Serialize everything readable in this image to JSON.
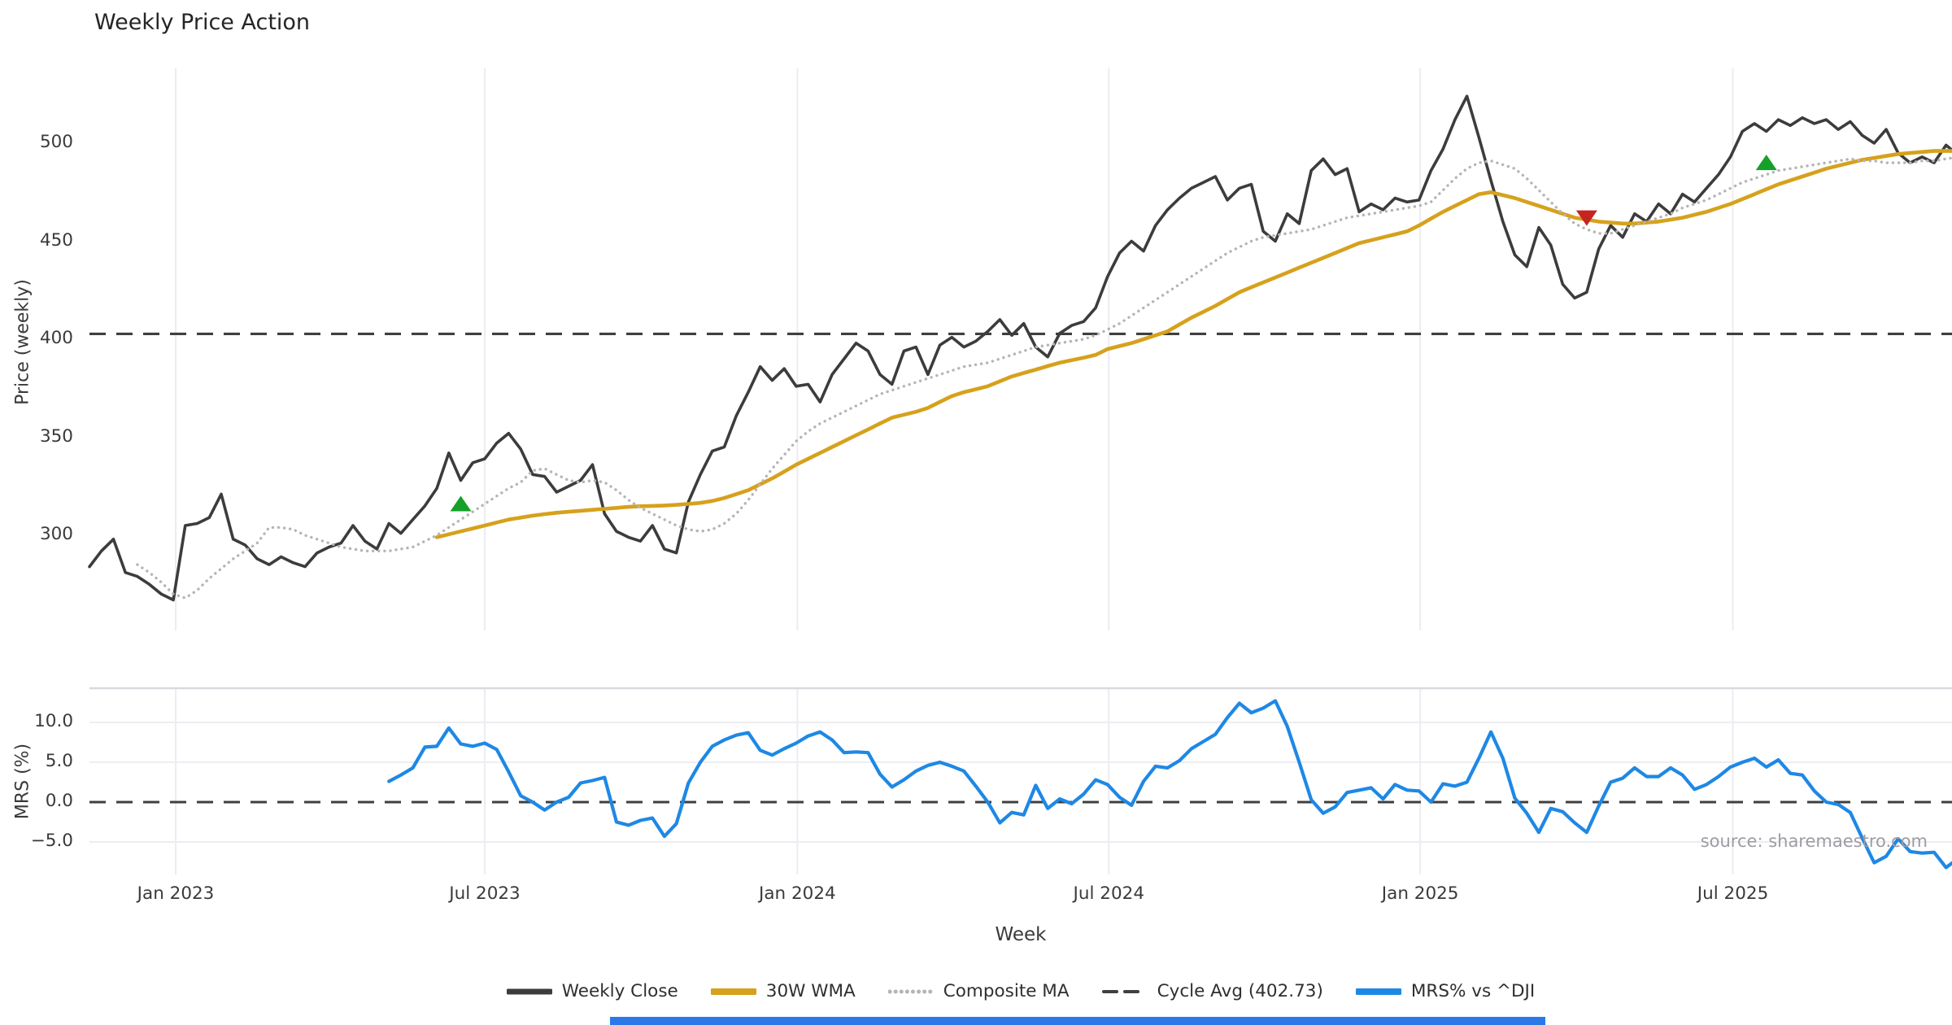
{
  "page": {
    "title": "Weekly Price Action"
  },
  "chart": {
    "title": "Weekly Price Action",
    "source_note": "source: sharemaestro.com",
    "x_axis": {
      "title": "Week",
      "ticks": [
        {
          "label": "Jan 2023",
          "week": 7.2
        },
        {
          "label": "Jul 2023",
          "week": 33.0
        },
        {
          "label": "Jan 2024",
          "week": 59.1
        },
        {
          "label": "Jul 2024",
          "week": 85.1
        },
        {
          "label": "Jan 2025",
          "week": 111.1
        },
        {
          "label": "Jul 2025",
          "week": 137.2
        }
      ]
    },
    "price_axis": {
      "title": "Price (weekly)",
      "ticks": [
        {
          "label": "500",
          "value": 500
        },
        {
          "label": "450",
          "value": 450
        },
        {
          "label": "400",
          "value": 400
        },
        {
          "label": "350",
          "value": 350
        },
        {
          "label": "300",
          "value": 300
        }
      ]
    },
    "mrs_axis": {
      "title": "MRS (%)",
      "ticks": [
        {
          "label": "10.0",
          "value": 10
        },
        {
          "label": "5.0",
          "value": 5
        },
        {
          "label": "0.0",
          "value": 0
        },
        {
          "label": "−5.0",
          "value": -5
        }
      ]
    },
    "legend": [
      {
        "label": "Weekly Close",
        "color": "#3c3c3c",
        "dash": "solid",
        "width": 7
      },
      {
        "label": "30W WMA",
        "color": "#d6a11c",
        "dash": "solid",
        "width": 8
      },
      {
        "label": "Composite MA",
        "color": "#b5b5b5",
        "dash": "dotted",
        "width": 5
      },
      {
        "label": "Cycle Avg (402.73)",
        "color": "#3f3f3f",
        "dash": "dashed",
        "width": 4
      },
      {
        "label": "MRS% vs ^DJI",
        "color": "#1e88e5",
        "dash": "solid",
        "width": 8
      }
    ],
    "colors": {
      "weekly_close": "#3c3c3c",
      "wma_30w": "#d6a11c",
      "composite_ma": "#b5b5b5",
      "cycle_avg": "#3f3f3f",
      "mrs": "#1e88e5",
      "buy_marker": "#16a02a",
      "sell_marker": "#c62420",
      "grid": "#ececf2",
      "panel_spine": "#d8d8de",
      "bottom_bar": "#2b79e8"
    }
  },
  "chart_data": [
    {
      "type": "line",
      "panel": "price",
      "title": "Weekly Price Action",
      "xlabel": "Week",
      "ylabel": "Price (weekly)",
      "ylim": [
        251,
        538
      ],
      "yticks": [
        300,
        350,
        400,
        450,
        500
      ],
      "grid": "vertical-only",
      "cycle_avg": 402.73,
      "x_unit": "week_index_from_2022-11",
      "series": [
        {
          "name": "Weekly Close",
          "color": "#3c3c3c",
          "dash": "solid",
          "start_week": 0,
          "values": [
            284,
            292,
            298,
            281,
            279,
            275,
            270,
            267,
            305,
            306,
            309,
            321,
            298,
            295,
            288,
            285,
            289,
            286,
            284,
            291,
            294,
            296,
            305,
            297,
            293,
            306,
            301,
            308,
            315,
            324,
            342,
            328,
            337,
            339,
            347,
            352,
            344,
            331,
            330,
            322,
            325,
            328,
            336,
            311,
            302,
            299,
            297,
            305,
            293,
            291,
            317,
            331,
            343,
            345,
            361,
            373,
            386,
            379,
            385,
            376,
            377,
            368,
            382,
            390,
            398,
            394,
            382,
            377,
            394,
            396,
            382,
            397,
            401,
            396,
            399,
            404,
            410,
            402,
            408,
            396,
            391,
            403,
            407,
            409,
            416,
            432,
            444,
            450,
            445,
            458,
            466,
            472,
            477,
            480,
            483,
            471,
            477,
            479,
            455,
            450,
            464,
            459,
            486,
            492,
            484,
            487,
            465,
            469,
            466,
            472,
            470,
            471,
            486,
            497,
            512,
            524,
            503,
            481,
            460,
            443,
            437,
            457,
            448,
            428,
            421,
            424,
            446,
            458,
            452,
            464,
            460,
            469,
            464,
            474,
            470,
            477,
            484,
            493,
            506,
            510,
            506,
            512,
            509,
            513,
            510,
            512,
            507,
            511,
            504,
            500,
            507,
            495,
            490,
            493,
            490,
            499,
            494
          ]
        },
        {
          "name": "30W WMA",
          "color": "#d6a11c",
          "dash": "solid",
          "start_week": 29,
          "values": [
            299,
            300.5,
            302,
            303.5,
            305,
            306.5,
            308,
            309,
            310,
            310.8,
            311.5,
            312,
            312.5,
            313,
            313.5,
            314,
            314.5,
            314.8,
            315,
            315.2,
            315.5,
            316,
            316.5,
            317.5,
            319,
            321,
            323,
            326,
            329,
            332.5,
            336,
            339,
            342,
            345,
            348,
            351,
            354,
            357,
            360,
            361.5,
            363,
            365,
            368,
            371,
            373,
            374.5,
            376,
            378.5,
            381,
            382.8,
            384.5,
            386.3,
            388,
            389.3,
            390.6,
            392,
            395,
            396.5,
            398,
            400,
            402,
            404,
            407.5,
            411,
            414,
            417,
            420.5,
            424,
            426.5,
            429,
            431.5,
            434,
            436.5,
            439,
            441.5,
            444,
            446.5,
            449,
            450.5,
            452,
            453.5,
            455,
            458,
            461.5,
            465,
            468,
            471,
            474,
            475,
            473.5,
            472,
            470,
            468,
            466,
            464,
            462,
            461,
            460,
            459.5,
            459,
            459,
            459.5,
            460,
            461,
            462,
            463.5,
            465,
            467,
            469,
            471.5,
            474,
            476.5,
            479,
            481,
            483,
            485,
            487,
            488.5,
            490,
            491.5,
            492.5,
            493.5,
            494.5,
            495,
            495.5,
            496,
            496,
            496
          ]
        },
        {
          "name": "Composite MA",
          "color": "#b5b5b5",
          "dash": "dotted",
          "start_week": 4,
          "values": [
            285,
            281,
            276,
            270,
            268,
            272,
            278,
            283,
            288,
            292,
            296,
            304,
            304,
            303,
            300,
            298,
            296,
            294,
            293,
            292,
            292,
            292,
            293,
            294,
            297,
            300,
            304,
            308,
            312,
            316,
            320,
            324,
            327,
            333,
            334,
            331,
            328,
            327,
            328,
            327,
            323,
            318,
            314,
            311,
            308,
            305,
            303,
            302,
            303,
            306,
            311,
            318,
            326,
            334,
            341,
            348,
            353,
            357,
            360,
            363,
            366,
            369,
            372,
            374,
            376,
            378,
            380,
            382,
            384,
            386,
            387,
            388,
            390,
            392,
            394,
            396,
            397,
            398,
            399,
            400,
            402,
            405,
            408,
            412,
            416,
            420,
            424,
            428,
            432,
            436,
            440,
            444,
            447,
            450,
            452,
            453,
            454,
            455,
            456,
            458,
            460,
            462,
            463,
            464,
            465,
            466,
            467,
            468,
            470,
            476,
            482,
            487,
            490,
            491,
            489,
            487,
            482,
            476,
            470,
            464,
            459,
            456,
            454,
            454,
            456,
            458,
            460,
            462,
            464,
            467,
            469,
            471,
            474,
            477,
            480,
            482,
            484,
            486,
            487,
            488,
            489,
            490,
            491,
            492,
            491,
            491,
            490,
            490,
            490,
            491,
            491,
            492,
            493
          ]
        }
      ],
      "markers": {
        "buy": [
          {
            "week": 31,
            "value": 316
          },
          {
            "week": 140,
            "value": 490
          }
        ],
        "sell": [
          {
            "week": 125,
            "value": 462
          }
        ]
      }
    },
    {
      "type": "line",
      "panel": "mrs",
      "ylabel": "MRS (%)",
      "ylim": [
        -9.5,
        14.3
      ],
      "yticks": [
        -5,
        0,
        5,
        10
      ],
      "zero_line": "dashed",
      "series": [
        {
          "name": "MRS% vs ^DJI",
          "color": "#1e88e5",
          "dash": "solid",
          "start_week": 25,
          "values": [
            2.6,
            3.4,
            4.3,
            6.9,
            7.0,
            9.3,
            7.3,
            7.0,
            7.4,
            6.6,
            3.8,
            0.8,
            0.0,
            -1.0,
            0.0,
            0.6,
            2.4,
            2.7,
            3.1,
            -2.5,
            -2.9,
            -2.3,
            -2.0,
            -4.3,
            -2.7,
            2.4,
            5.0,
            7.0,
            7.8,
            8.4,
            8.7,
            6.5,
            5.9,
            6.7,
            7.4,
            8.3,
            8.8,
            7.8,
            6.2,
            6.3,
            6.2,
            3.5,
            1.9,
            2.8,
            3.9,
            4.6,
            5.0,
            4.5,
            3.9,
            2.0,
            0.0,
            -2.6,
            -1.3,
            -1.6,
            2.1,
            -0.8,
            0.4,
            -0.2,
            1.0,
            2.8,
            2.2,
            0.6,
            -0.4,
            2.6,
            4.5,
            4.3,
            5.2,
            6.7,
            7.6,
            8.5,
            10.6,
            12.4,
            11.2,
            11.8,
            12.7,
            9.5,
            5.0,
            0.3,
            -1.4,
            -0.6,
            1.2,
            1.5,
            1.8,
            0.4,
            2.2,
            1.5,
            1.4,
            0.0,
            2.3,
            2.0,
            2.5,
            5.5,
            8.8,
            5.5,
            0.5,
            -1.4,
            -3.8,
            -0.8,
            -1.2,
            -2.6,
            -3.8,
            -0.5,
            2.5,
            3.0,
            4.3,
            3.2,
            3.2,
            4.3,
            3.4,
            1.6,
            2.2,
            3.2,
            4.4,
            5.0,
            5.5,
            4.4,
            5.3,
            3.6,
            3.4,
            1.4,
            0.0,
            -0.3,
            -1.3,
            -4.5,
            -7.6,
            -6.8,
            -4.6,
            -6.2,
            -6.4,
            -6.3,
            -8.2,
            -7.1
          ]
        }
      ]
    }
  ]
}
